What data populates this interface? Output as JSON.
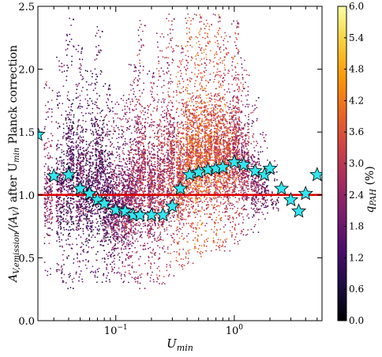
{
  "chart_data": {
    "type": "scatter",
    "xscale": "log",
    "xlim": [
      0.022,
      5.5
    ],
    "ylim": [
      0.0,
      2.5
    ],
    "xlabel": "U_min",
    "ylabel": "A_V,emission/⟨A_V⟩ after U_min Planck correction",
    "ylabel_parts": {
      "pre": "A",
      "sub1": "V,emission",
      "mid1": "/⟨A",
      "sub2": "V",
      "mid2": "⟩ after U",
      "sub3": "min",
      "post": " Planck correction"
    },
    "xlabel_parts": {
      "pre": "U",
      "sub": "min"
    },
    "x_ticks": [
      {
        "value": 0.1,
        "base": "10",
        "exp": "−1"
      },
      {
        "value": 1,
        "base": "10",
        "exp": "0"
      }
    ],
    "y_ticks": [
      "0.0",
      "0.5",
      "1.0",
      "1.5",
      "2.0",
      "2.5"
    ],
    "reference_line": {
      "y": 1.0,
      "color": "#dd0000"
    },
    "colorbar": {
      "label": "q_PAH (%)",
      "label_parts": {
        "pre": "q",
        "sub": "PAH",
        "post": " (%)"
      },
      "min": 0.0,
      "max": 6.0,
      "ticks": [
        "0.0",
        "0.6",
        "1.2",
        "1.8",
        "2.4",
        "3.0",
        "3.6",
        "4.2",
        "4.8",
        "5.4",
        "6.0"
      ],
      "colormap": [
        "#000004",
        "#1b0c41",
        "#4a0c6b",
        "#781c6d",
        "#a52c60",
        "#cf4446",
        "#ed6925",
        "#fb9b06",
        "#f7d13d",
        "#fcffa4"
      ]
    },
    "star_series": {
      "marker": "star",
      "color": "#33e6ef",
      "x": [
        0.022,
        0.03,
        0.04,
        0.05,
        0.06,
        0.07,
        0.08,
        0.1,
        0.12,
        0.14,
        0.16,
        0.2,
        0.25,
        0.3,
        0.35,
        0.42,
        0.5,
        0.6,
        0.7,
        0.8,
        1.0,
        1.2,
        1.5,
        1.8,
        2.0,
        2.5,
        3.0,
        3.5,
        4.0,
        5.0
      ],
      "y": [
        1.48,
        1.15,
        1.16,
        1.05,
        1.01,
        0.96,
        0.93,
        0.88,
        0.87,
        0.84,
        0.84,
        0.84,
        0.84,
        0.91,
        1.05,
        1.16,
        1.18,
        1.2,
        1.21,
        1.22,
        1.26,
        1.24,
        1.19,
        1.16,
        1.21,
        1.05,
        0.96,
        0.87,
        1.01,
        1.16
      ]
    },
    "scatter_cloud": {
      "description_of_density": "dense vertical columns of points between y≈0.3 and y≈2.4, color coded by q_PAH",
      "columns": [
        {
          "x": 0.027,
          "ymin": 0.35,
          "ymax": 1.95,
          "n": 220,
          "q_mean": 2.2
        },
        {
          "x": 0.034,
          "ymin": 0.3,
          "ymax": 2.1,
          "n": 300,
          "q_mean": 1.6
        },
        {
          "x": 0.041,
          "ymin": 0.25,
          "ymax": 2.45,
          "n": 420,
          "q_mean": 1.4
        },
        {
          "x": 0.05,
          "ymin": 0.3,
          "ymax": 2.2,
          "n": 420,
          "q_mean": 1.7
        },
        {
          "x": 0.06,
          "ymin": 0.35,
          "ymax": 2.0,
          "n": 380,
          "q_mean": 1.3
        },
        {
          "x": 0.072,
          "ymin": 0.3,
          "ymax": 2.35,
          "n": 420,
          "q_mean": 1.5
        },
        {
          "x": 0.085,
          "ymin": 0.3,
          "ymax": 1.9,
          "n": 420,
          "q_mean": 1.6
        },
        {
          "x": 0.1,
          "ymin": 0.35,
          "ymax": 1.75,
          "n": 460,
          "q_mean": 2.0
        },
        {
          "x": 0.12,
          "ymin": 0.3,
          "ymax": 1.8,
          "n": 460,
          "q_mean": 2.2
        },
        {
          "x": 0.14,
          "ymin": 0.3,
          "ymax": 2.05,
          "n": 460,
          "q_mean": 2.4
        },
        {
          "x": 0.165,
          "ymin": 0.25,
          "ymax": 2.4,
          "n": 460,
          "q_mean": 2.6
        },
        {
          "x": 0.2,
          "ymin": 0.3,
          "ymax": 2.0,
          "n": 460,
          "q_mean": 2.6
        },
        {
          "x": 0.24,
          "ymin": 0.25,
          "ymax": 2.3,
          "n": 440,
          "q_mean": 2.8
        },
        {
          "x": 0.29,
          "ymin": 0.35,
          "ymax": 2.45,
          "n": 460,
          "q_mean": 2.9
        },
        {
          "x": 0.35,
          "ymin": 0.4,
          "ymax": 2.2,
          "n": 500,
          "q_mean": 3.3
        },
        {
          "x": 0.42,
          "ymin": 0.45,
          "ymax": 2.45,
          "n": 560,
          "q_mean": 3.6
        },
        {
          "x": 0.5,
          "ymin": 0.5,
          "ymax": 2.45,
          "n": 560,
          "q_mean": 3.7
        },
        {
          "x": 0.6,
          "ymin": 0.55,
          "ymax": 2.4,
          "n": 560,
          "q_mean": 3.6
        },
        {
          "x": 0.72,
          "ymin": 0.55,
          "ymax": 2.45,
          "n": 560,
          "q_mean": 3.5
        },
        {
          "x": 0.86,
          "ymin": 0.55,
          "ymax": 2.3,
          "n": 520,
          "q_mean": 3.3
        },
        {
          "x": 1.03,
          "ymin": 0.6,
          "ymax": 2.4,
          "n": 500,
          "q_mean": 3.0
        },
        {
          "x": 1.23,
          "ymin": 0.65,
          "ymax": 2.1,
          "n": 360,
          "q_mean": 2.6
        },
        {
          "x": 1.5,
          "ymin": 0.7,
          "ymax": 1.8,
          "n": 220,
          "q_mean": 2.2
        },
        {
          "x": 1.8,
          "ymin": 0.8,
          "ymax": 1.5,
          "n": 100,
          "q_mean": 1.9
        },
        {
          "x": 2.2,
          "ymin": 0.85,
          "ymax": 1.3,
          "n": 40,
          "q_mean": 1.7
        }
      ]
    }
  }
}
